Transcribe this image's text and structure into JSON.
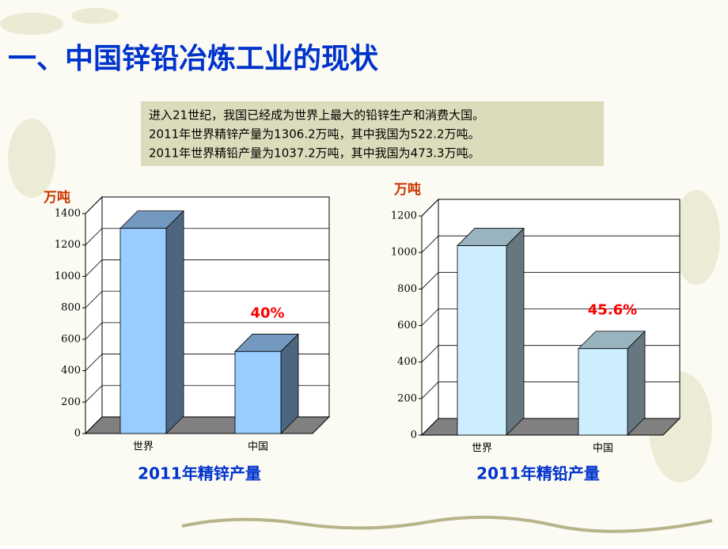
{
  "page": {
    "title": "一、中国锌铅冶炼工业的现状",
    "lines": [
      "进入21世纪，我国已经成为世界上最大的铅锌生产和消费大国。",
      "2011年世界精锌产量为1306.2万吨，其中我国为522.2万吨。",
      "2011年世界精铅产量为1037.2万吨，其中我国为473.3万吨。"
    ]
  },
  "chart_data": [
    {
      "type": "bar3d",
      "title": "2011年精锌产量",
      "y_label": "万吨",
      "categories": [
        "世界",
        "中国"
      ],
      "values": [
        1306.2,
        522.2
      ],
      "color": "#99ccff",
      "annotation": "40%",
      "ylim": [
        0,
        1400
      ],
      "yticks": [
        0,
        200,
        400,
        600,
        800,
        1000,
        1200,
        1400
      ],
      "grid": true
    },
    {
      "type": "bar3d",
      "title": "2011年精铅产量",
      "y_label": "万吨",
      "categories": [
        "世界",
        "中国"
      ],
      "values": [
        1037.2,
        473.3
      ],
      "color": "#cceeff",
      "annotation": "45.6%",
      "ylim": [
        0,
        1200
      ],
      "yticks": [
        0,
        200,
        400,
        600,
        800,
        1000,
        1200
      ],
      "grid": true
    }
  ]
}
